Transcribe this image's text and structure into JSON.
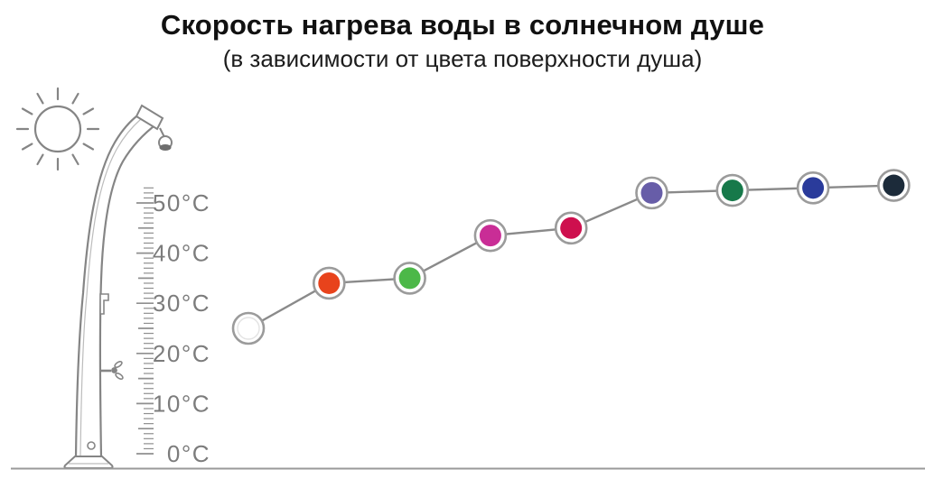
{
  "title": "Скорость нагрева воды в солнечном душе",
  "subtitle": "(в зависимости от цвета поверхности душа)",
  "chart_data": {
    "type": "line",
    "title": "Скорость нагрева воды в солнечном душе",
    "subtitle": "(в зависимости от цвета поверхности душа)",
    "grid": false,
    "legend": "none",
    "x_axis": {
      "label": "",
      "visible": false
    },
    "y_axis": {
      "unit": "°C",
      "range": [
        0,
        53
      ],
      "ticks": [
        0,
        10,
        20,
        30,
        40,
        50
      ],
      "tick_labels": [
        "0°C",
        "10°C",
        "20°C",
        "30°C",
        "40°C",
        "50°C"
      ]
    },
    "points": [
      {
        "surface_color_name": "white",
        "color": "#FFFFFF",
        "temp_c": 25
      },
      {
        "surface_color_name": "orange-red",
        "color": "#E8431C",
        "temp_c": 34
      },
      {
        "surface_color_name": "green",
        "color": "#4CB848",
        "temp_c": 35
      },
      {
        "surface_color_name": "pink-magenta",
        "color": "#C92D96",
        "temp_c": 43.5
      },
      {
        "surface_color_name": "crimson",
        "color": "#CE0F4E",
        "temp_c": 45
      },
      {
        "surface_color_name": "violet",
        "color": "#675DA8",
        "temp_c": 52
      },
      {
        "surface_color_name": "dark-green",
        "color": "#17794A",
        "temp_c": 52.5
      },
      {
        "surface_color_name": "dark-blue",
        "color": "#2A3B9B",
        "temp_c": 53
      },
      {
        "surface_color_name": "black-navy",
        "color": "#1C2B3A",
        "temp_c": 53.5
      }
    ],
    "colors": {
      "connector_line": "#8a8a8a",
      "dot_ring": "#9b9b9b",
      "white_dot_inner_ring": "#e3e3e3",
      "axis_text": "#7c7c7c",
      "illustration_stroke": "#858585",
      "title_text": "#111111"
    }
  }
}
